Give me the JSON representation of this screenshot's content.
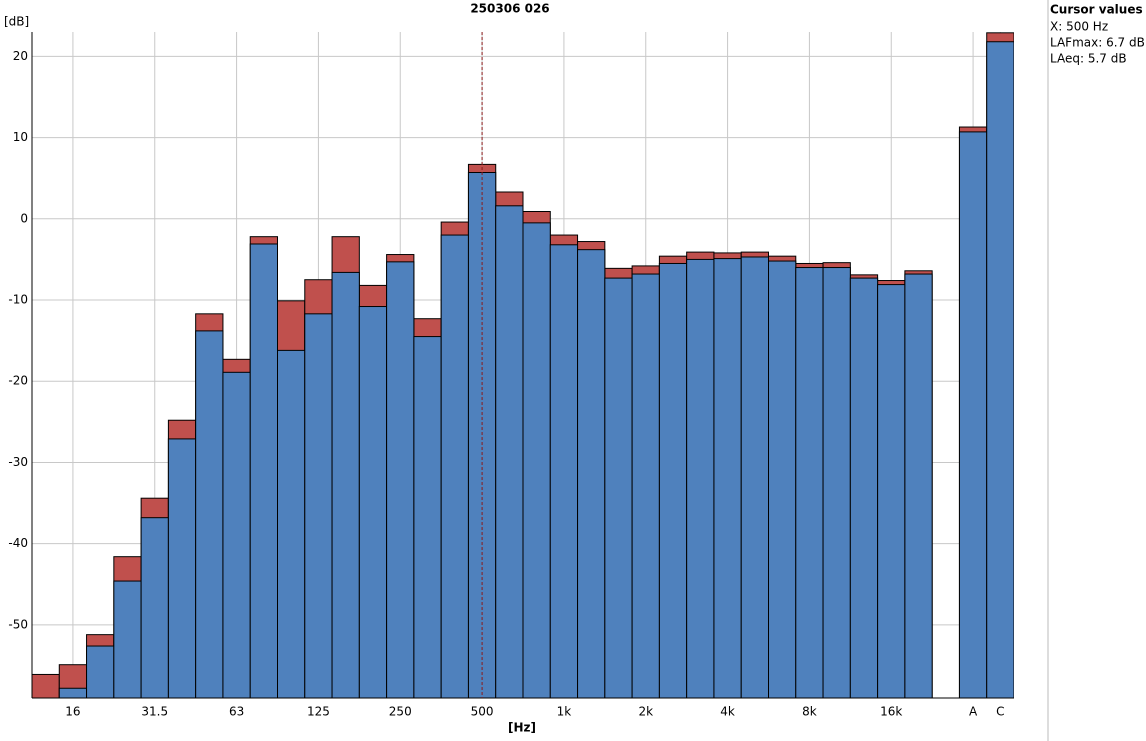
{
  "chart_data": {
    "type": "bar",
    "title": "250306 026",
    "ylabel": "[dB]",
    "xlabel": "[Hz]",
    "categories": [
      null,
      "16",
      null,
      null,
      "31.5",
      null,
      null,
      "63",
      null,
      null,
      "125",
      null,
      null,
      "250",
      null,
      null,
      "500",
      null,
      null,
      "1k",
      null,
      null,
      "2k",
      null,
      null,
      "4k",
      null,
      null,
      "8k",
      null,
      null,
      "16k",
      null,
      null,
      "A",
      "C"
    ],
    "series": [
      {
        "name": "LAFmax",
        "color": "#c0504d",
        "values": [
          -56.1,
          -54.9,
          -51.2,
          -41.6,
          -34.4,
          -24.8,
          -11.7,
          -17.3,
          -2.2,
          -10.1,
          -7.5,
          -2.2,
          -8.2,
          -4.4,
          -12.3,
          -0.4,
          6.7,
          3.3,
          0.9,
          -2.0,
          -2.8,
          -6.1,
          -5.8,
          -4.6,
          -4.1,
          -4.2,
          -4.1,
          -4.6,
          -5.5,
          -5.4,
          -6.9,
          -7.6,
          -6.4,
          null,
          11.3,
          22.9
        ]
      },
      {
        "name": "LAeq",
        "color": "#4f81bd",
        "values": [
          -59.5,
          -57.8,
          -52.6,
          -44.6,
          -36.8,
          -27.1,
          -13.8,
          -18.9,
          -3.1,
          -16.2,
          -11.7,
          -6.6,
          -10.8,
          -5.3,
          -14.5,
          -2.0,
          5.7,
          1.6,
          -0.5,
          -3.2,
          -3.8,
          -7.3,
          -6.8,
          -5.5,
          -5.0,
          -4.9,
          -4.7,
          -5.2,
          -6.0,
          -6.0,
          -7.3,
          -8.1,
          -6.8,
          null,
          10.7,
          21.8
        ]
      }
    ],
    "ylim": [
      -59,
      23
    ],
    "yticks": [
      -50,
      -40,
      -30,
      -20,
      -10,
      0,
      10,
      20
    ],
    "grid": true,
    "cursor": {
      "category": "500"
    },
    "cursor_panel": {
      "title": "Cursor values",
      "lines": [
        "X: 500 Hz",
        "LAFmax: 6.7 dB",
        "LAeq: 5.7 dB"
      ]
    }
  }
}
